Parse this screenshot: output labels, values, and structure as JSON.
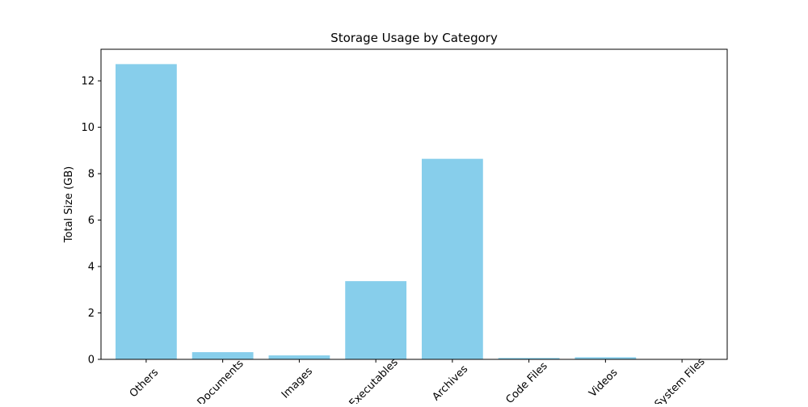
{
  "chart_data": {
    "type": "bar",
    "title": "Storage Usage by Category",
    "xlabel": "",
    "ylabel": "Total Size (GB)",
    "categories": [
      "Others",
      "Documents",
      "Images",
      "Executables",
      "Archives",
      "Code Files",
      "Videos",
      "System Files"
    ],
    "values": [
      12.72,
      0.31,
      0.17,
      3.37,
      8.64,
      0.06,
      0.09,
      0.0
    ],
    "ylim": [
      0,
      13.36
    ],
    "yticks": [
      0,
      2,
      4,
      6,
      8,
      10,
      12
    ],
    "grid": false,
    "legend": "none",
    "bar_color": "#87ceeb"
  }
}
